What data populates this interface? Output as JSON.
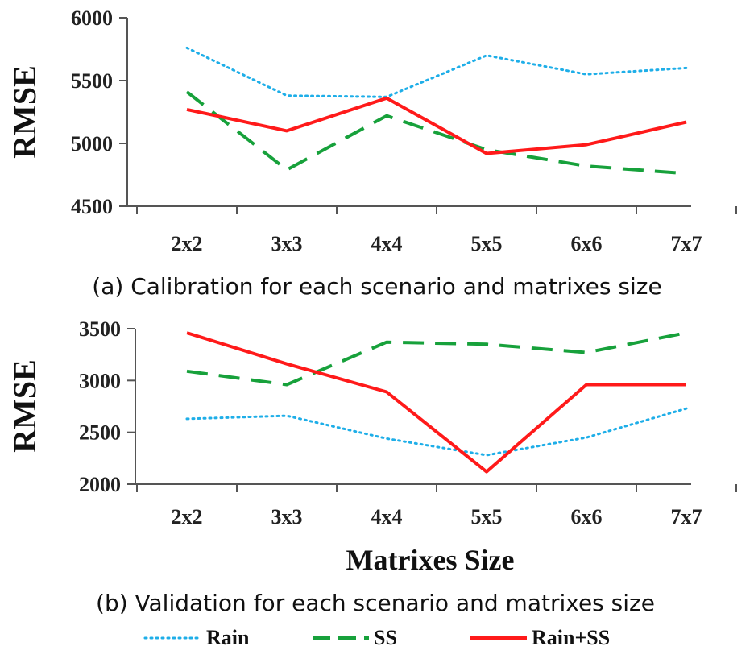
{
  "chart_data": [
    {
      "type": "line",
      "caption": "(a) Calibration for each scenario and matrixes size",
      "ylabel": "RMSE",
      "xlabel": "",
      "categories": [
        "2x2",
        "3x3",
        "4x4",
        "5x5",
        "6x6",
        "7x7"
      ],
      "ylim": [
        4500,
        6000
      ],
      "yticks": [
        "4500",
        "5000",
        "5500",
        "6000"
      ],
      "series": [
        {
          "name": "Rain",
          "color": "#1eaee8",
          "style": "dotted",
          "values": [
            5760,
            5380,
            5370,
            5700,
            5550,
            5600
          ]
        },
        {
          "name": "SS",
          "color": "#17a13b",
          "style": "dashed",
          "values": [
            5410,
            4790,
            5220,
            4950,
            4820,
            4760
          ]
        },
        {
          "name": "Rain+SS",
          "color": "#ff1a1a",
          "style": "solid",
          "values": [
            5270,
            5100,
            5360,
            4920,
            4990,
            5170
          ]
        }
      ]
    },
    {
      "type": "line",
      "caption": "(b) Validation for each scenario and matrixes size",
      "ylabel": "RMSE",
      "xlabel": "Matrixes Size",
      "categories": [
        "2x2",
        "3x3",
        "4x4",
        "5x5",
        "6x6",
        "7x7"
      ],
      "ylim": [
        2000,
        3500
      ],
      "yticks": [
        "2000",
        "2500",
        "3000",
        "3500"
      ],
      "series": [
        {
          "name": "Rain",
          "color": "#1eaee8",
          "style": "dotted",
          "values": [
            2630,
            2660,
            2440,
            2280,
            2450,
            2730
          ]
        },
        {
          "name": "SS",
          "color": "#17a13b",
          "style": "dashed",
          "values": [
            3090,
            2960,
            3370,
            3350,
            3270,
            3460
          ]
        },
        {
          "name": "Rain+SS",
          "color": "#ff1a1a",
          "style": "solid",
          "values": [
            3460,
            3160,
            2890,
            2120,
            2960,
            2960
          ]
        }
      ]
    }
  ],
  "legend": [
    {
      "label": "Rain",
      "color": "#1eaee8",
      "style": "dotted"
    },
    {
      "label": "SS",
      "color": "#17a13b",
      "style": "dashed"
    },
    {
      "label": "Rain+SS",
      "color": "#ff1a1a",
      "style": "solid"
    }
  ]
}
